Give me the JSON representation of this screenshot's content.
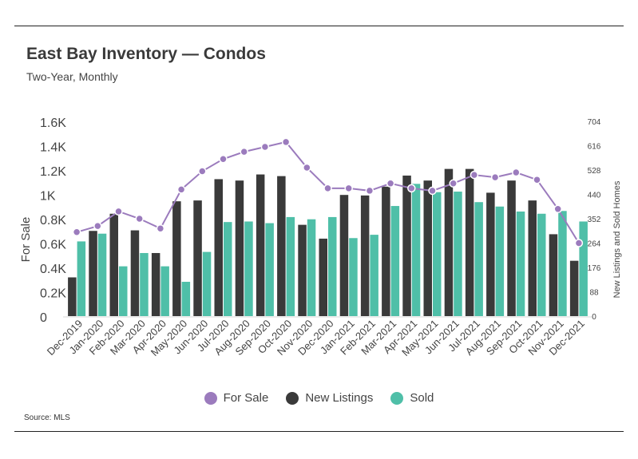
{
  "header": {
    "title": "East Bay Inventory — Condos",
    "subtitle": "Two-Year, Monthly"
  },
  "footer": {
    "source": "Source:  MLS"
  },
  "colors": {
    "for_sale": "#9b7bbd",
    "new_listings": "#3a3a3a",
    "sold": "#4fbfa8"
  },
  "chart_data": {
    "type": "bar",
    "categories": [
      "Dec-2019",
      "Jan-2020",
      "Feb-2020",
      "Mar-2020",
      "Apr-2020",
      "May-2020",
      "Jun-2020",
      "Jul-2020",
      "Aug-2020",
      "Sep-2020",
      "Oct-2020",
      "Nov-2020",
      "Dec-2020",
      "Jan-2021",
      "Feb-2021",
      "Mar-2021",
      "Apr-2021",
      "May-2021",
      "Jun-2021",
      "Jul-2021",
      "Aug-2021",
      "Sep-2021",
      "Oct-2021",
      "Nov-2021",
      "Dec-2021"
    ],
    "series": [
      {
        "name": "For Sale",
        "type": "line",
        "axis": "left",
        "values": [
          690,
          740,
          860,
          800,
          720,
          1040,
          1190,
          1290,
          1350,
          1390,
          1430,
          1220,
          1050,
          1050,
          1030,
          1090,
          1050,
          1030,
          1090,
          1160,
          1140,
          1180,
          1120,
          880,
          600
        ]
      },
      {
        "name": "New Listings",
        "type": "bar",
        "axis": "right",
        "values": [
          140,
          308,
          370,
          310,
          228,
          415,
          418,
          495,
          490,
          512,
          506,
          330,
          280,
          438,
          436,
          468,
          508,
          490,
          532,
          532,
          446,
          490,
          418,
          296,
          200
        ]
      },
      {
        "name": "Sold",
        "type": "bar",
        "axis": "right",
        "values": [
          270,
          298,
          180,
          228,
          180,
          124,
          232,
          340,
          342,
          336,
          358,
          350,
          358,
          282,
          294,
          398,
          478,
          448,
          450,
          412,
          396,
          378,
          370,
          380,
          342
        ]
      }
    ],
    "y_left": {
      "label": "For Sale",
      "range": [
        0,
        1600
      ],
      "ticks": [
        "0",
        "0.2K",
        "0.4K",
        "0.6K",
        "0.8K",
        "1K",
        "1.2K",
        "1.4K",
        "1.6K"
      ]
    },
    "y_right": {
      "label": "New Listings and Sold Homes",
      "range": [
        0,
        704
      ],
      "ticks": [
        "0",
        "88",
        "176",
        "264",
        "352",
        "440",
        "528",
        "616",
        "704"
      ]
    },
    "legend": {
      "position": "bottom",
      "entries": [
        "For Sale",
        "New Listings",
        "Sold"
      ]
    },
    "grid": false
  }
}
